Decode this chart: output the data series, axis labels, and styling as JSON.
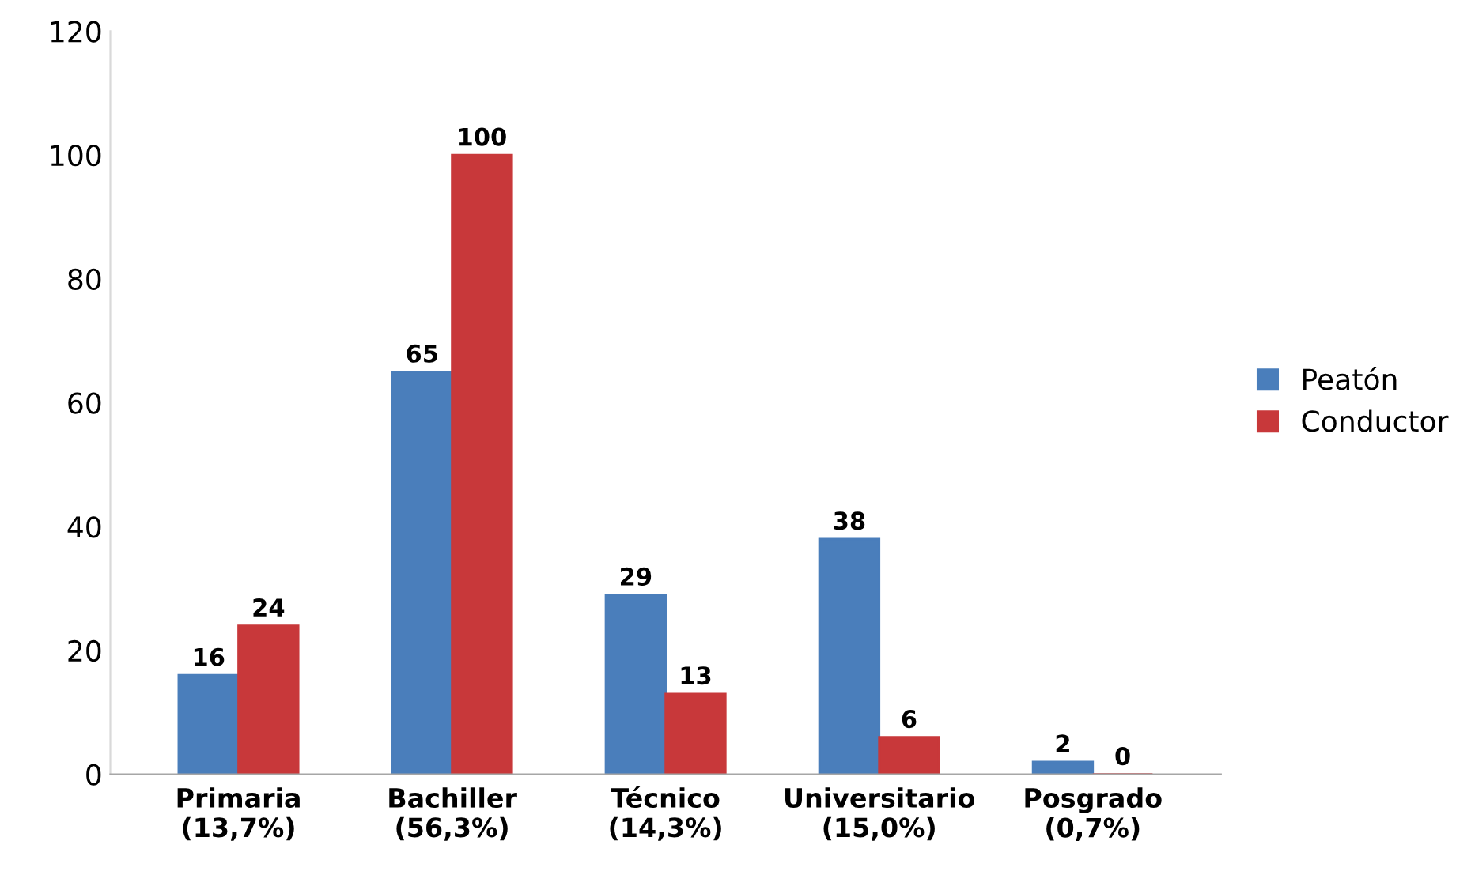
{
  "chart_data": {
    "type": "bar",
    "categories": [
      "Primaria\n(13,7%)",
      "Bachiller\n(56,3%)",
      "Técnico\n(14,3%)",
      "Universitario\n(15,0%)",
      "Posgrado\n(0,7%)"
    ],
    "series": [
      {
        "name": "Peatón",
        "color": "#4a7ebb",
        "values": [
          16,
          65,
          29,
          38,
          2
        ]
      },
      {
        "name": "Conductor",
        "color": "#c8383a",
        "values": [
          24,
          100,
          13,
          6,
          0
        ]
      }
    ],
    "ylim": [
      0,
      120
    ],
    "yticks": [
      0,
      20,
      40,
      60,
      80,
      100,
      120
    ],
    "grid": false,
    "legend": "right",
    "data_labels": true
  }
}
